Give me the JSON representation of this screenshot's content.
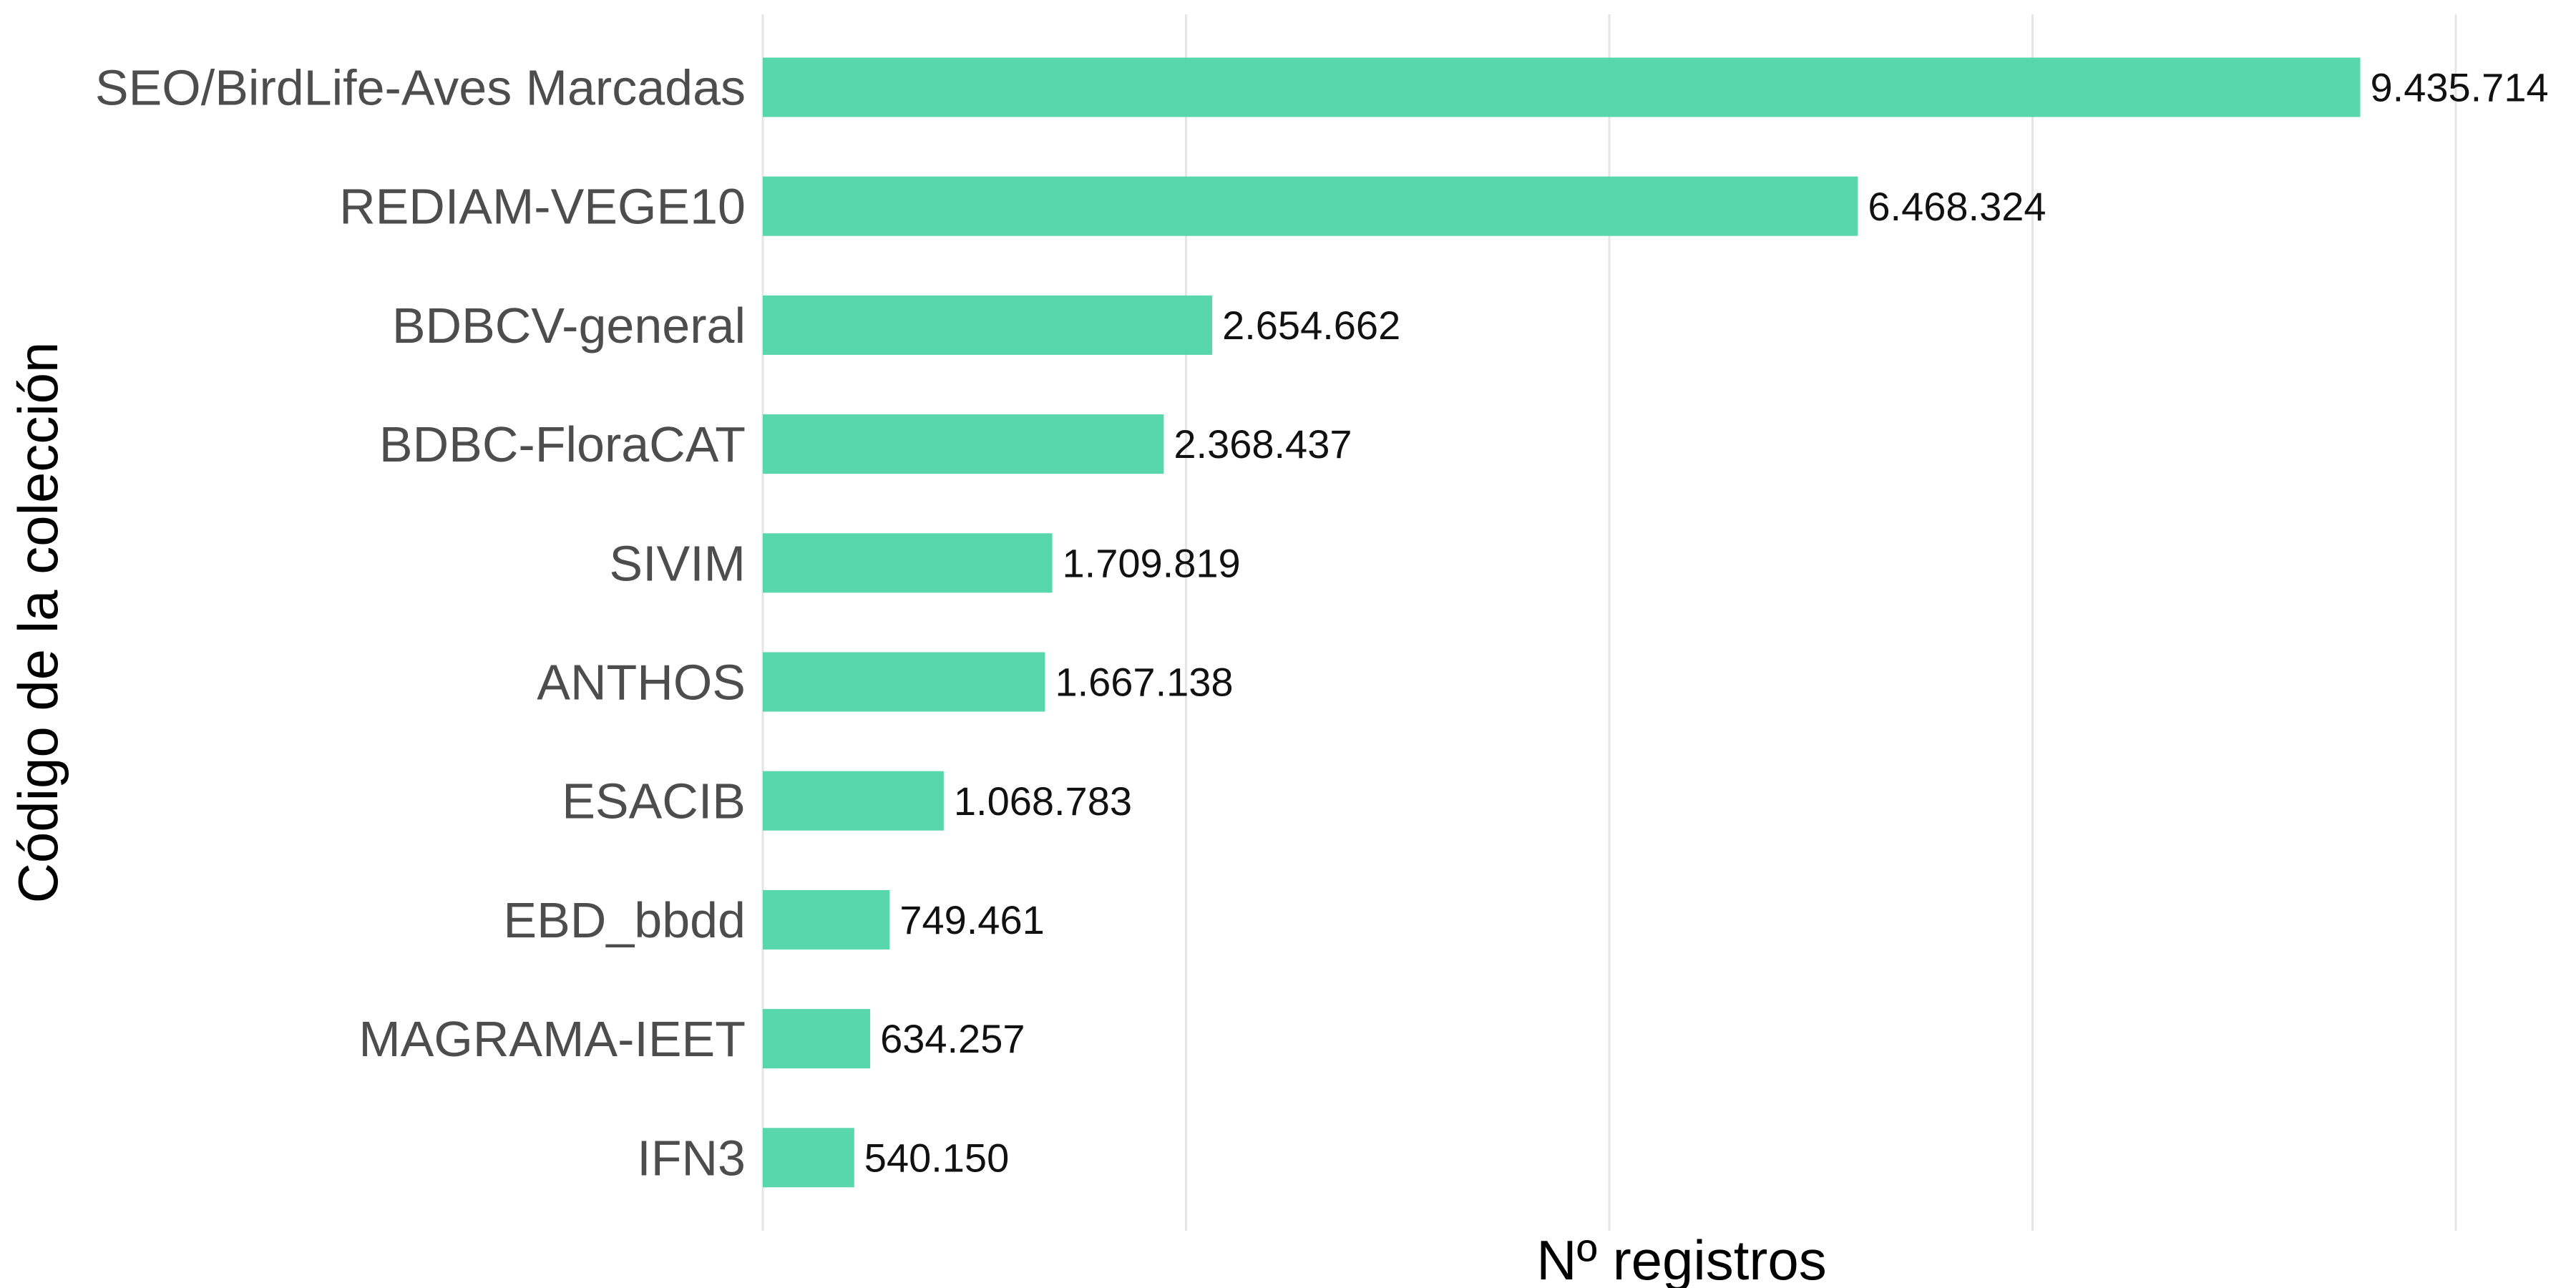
{
  "chart_data": {
    "type": "bar",
    "orientation": "horizontal",
    "categories": [
      "SEO/BirdLife-Aves Marcadas",
      "REDIAM-VEGE10",
      "BDBCV-general",
      "BDBC-FloraCAT",
      "SIVIM",
      "ANTHOS",
      "ESACIB",
      "EBD_bbdd",
      "MAGRAMA-IEET",
      "IFN3"
    ],
    "values": [
      9435714,
      6468324,
      2654662,
      2368437,
      1709819,
      1667138,
      1068783,
      749461,
      634257,
      540150
    ],
    "value_labels": [
      "9.435.714",
      "6.468.324",
      "2.654.662",
      "2.368.437",
      "1.709.819",
      "1.667.138",
      "1.068.783",
      "749.461",
      "634.257",
      "540.150"
    ],
    "title": "",
    "xlabel": "Nº registros",
    "ylabel": "Código de la colección",
    "xlim": [
      0,
      10000000
    ],
    "x_gridlines": [
      0,
      2500000,
      5000000,
      7500000,
      10000000
    ],
    "x_tick_labels_shown": false,
    "grid": true,
    "legend": "none",
    "bar_color": "#4fd4a8"
  }
}
